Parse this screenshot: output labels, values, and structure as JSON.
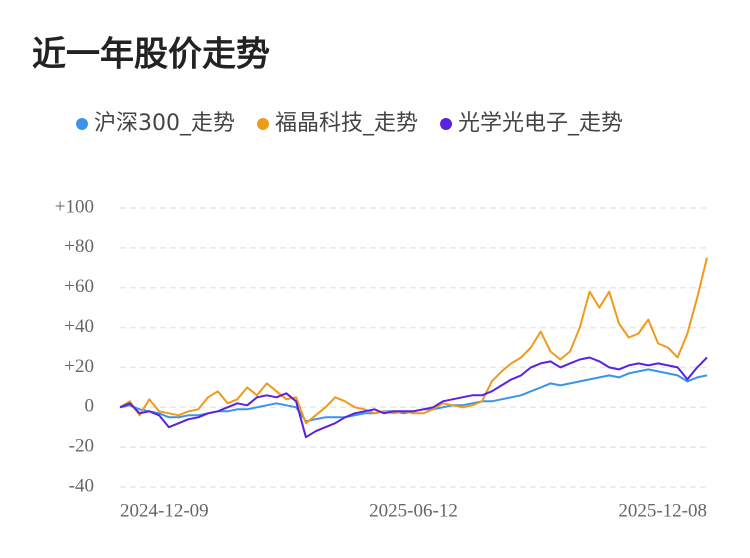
{
  "chart_data": {
    "type": "line",
    "title": "近一年股价走势",
    "categories": [
      "2024-12-09",
      null,
      null,
      null,
      null,
      null,
      null,
      null,
      null,
      null,
      null,
      null,
      null,
      null,
      null,
      null,
      null,
      null,
      null,
      null,
      null,
      null,
      null,
      null,
      null,
      null,
      null,
      null,
      null,
      null,
      "2025-06-12",
      null,
      null,
      null,
      null,
      null,
      null,
      null,
      null,
      null,
      null,
      null,
      null,
      null,
      null,
      null,
      null,
      null,
      null,
      null,
      null,
      null,
      null,
      null,
      null,
      null,
      null,
      null,
      null,
      null,
      "2025-12-08"
    ],
    "series": [
      {
        "name": "沪深300_走势",
        "color": "#3a94e8",
        "values": [
          0,
          1,
          -1,
          -2,
          -3,
          -5,
          -5,
          -4,
          -4,
          -3,
          -2,
          -2,
          -1,
          -1,
          0,
          1,
          2,
          1,
          0,
          -7,
          -6,
          -5,
          -5,
          -5,
          -4,
          -3,
          -3,
          -2,
          -2,
          -3,
          -2,
          -1,
          -1,
          0,
          1,
          1,
          2,
          3,
          3,
          4,
          5,
          6,
          8,
          10,
          12,
          11,
          12,
          13,
          14,
          15,
          16,
          15,
          17,
          18,
          19,
          18,
          17,
          16,
          13,
          15,
          16
        ]
      },
      {
        "name": "福晶科技_走势",
        "color": "#f09a1a",
        "values": [
          0,
          3,
          -4,
          4,
          -2,
          -3,
          -4,
          -2,
          -1,
          5,
          8,
          2,
          4,
          10,
          6,
          12,
          8,
          4,
          5,
          -8,
          -4,
          0,
          5,
          3,
          0,
          -1,
          -3,
          -2,
          -3,
          -2,
          -3,
          -3,
          -1,
          2,
          1,
          0,
          1,
          3,
          13,
          18,
          22,
          25,
          30,
          38,
          28,
          24,
          28,
          40,
          58,
          50,
          58,
          42,
          35,
          37,
          44,
          32,
          30,
          25,
          37,
          55,
          75
        ]
      },
      {
        "name": "光学光电子_走势",
        "color": "#5a22e0",
        "values": [
          0,
          2,
          -3,
          -2,
          -4,
          -10,
          -8,
          -6,
          -5,
          -3,
          -2,
          0,
          2,
          1,
          5,
          6,
          5,
          7,
          3,
          -15,
          -12,
          -10,
          -8,
          -5,
          -3,
          -2,
          -1,
          -3,
          -2,
          -2,
          -2,
          -1,
          0,
          3,
          4,
          5,
          6,
          6,
          8,
          11,
          14,
          16,
          20,
          22,
          23,
          20,
          22,
          24,
          25,
          23,
          20,
          19,
          21,
          22,
          21,
          22,
          21,
          20,
          14,
          20,
          25
        ]
      }
    ],
    "ylim": [
      -40,
      100
    ],
    "yticks": [
      {
        "value": -40,
        "label": "-40"
      },
      {
        "value": -20,
        "label": "-20"
      },
      0,
      {
        "value": 20,
        "label": "+20"
      },
      {
        "value": 40,
        "label": "+40"
      },
      {
        "value": 60,
        "label": "+60"
      },
      {
        "value": 80,
        "label": "+80"
      },
      {
        "value": 100,
        "label": "+100"
      }
    ],
    "grid": true
  }
}
